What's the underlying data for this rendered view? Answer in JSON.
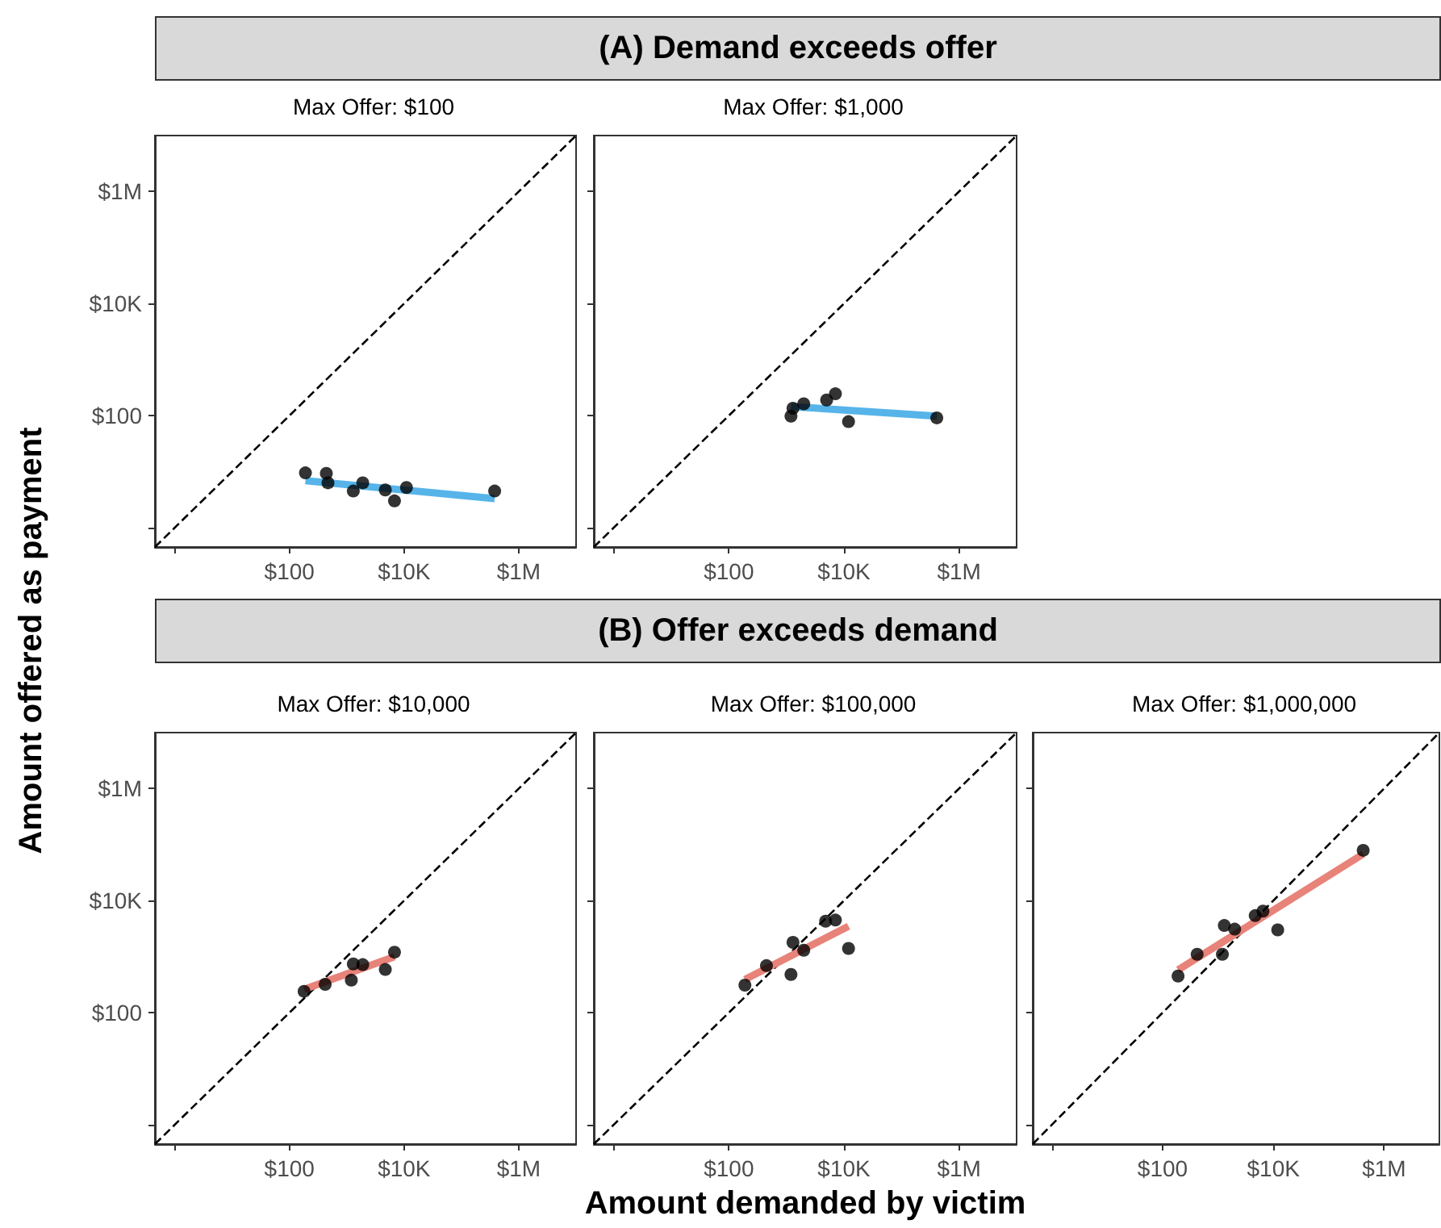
{
  "chart_data": [
    {
      "type": "scatter",
      "title": "Max Offer: $100",
      "ylabel": "Amount offered as payment",
      "annotations": [
        "(A) Demand exceeds offer"
      ],
      "xlim": [
        0.45,
        10000000
      ],
      "ylim": [
        0.45,
        10000000
      ],
      "xticks": [
        {
          "value": 1,
          "label": null
        },
        {
          "value": 100,
          "label": "$100"
        },
        {
          "value": 10000,
          "label": "$10K"
        },
        {
          "value": 1000000,
          "label": "$1M"
        }
      ],
      "yticks": [
        {
          "value": 1,
          "label": null
        },
        {
          "value": 100,
          "label": "$100"
        },
        {
          "value": 10000,
          "label": "$10K"
        },
        {
          "value": 1000000,
          "label": "$1M"
        }
      ],
      "log": "xy",
      "grid": false,
      "series": [
        {
          "type": "line",
          "color": "#000000",
          "line_style": "dashed",
          "marker": "none",
          "x": [
            0.45,
            10000000
          ],
          "values": [
            0.45,
            10000000
          ]
        },
        {
          "color": "#000000",
          "marker": "circle",
          "x": [
            190,
            440,
            470,
            1300,
            1900,
            4700,
            6800,
            11000,
            380000
          ],
          "values": [
            9.5,
            9.3,
            6.3,
            4.5,
            6.3,
            4.7,
            3.0,
            5.2,
            4.5
          ]
        },
        {
          "type": "line",
          "color": "#56b4e9",
          "line_style": "solid",
          "marker": "none",
          "x": [
            190,
            380000
          ],
          "values": [
            6.9,
            3.3
          ]
        }
      ]
    },
    {
      "type": "scatter",
      "title": "Max Offer: $1,000",
      "xlim": [
        0.45,
        10000000
      ],
      "ylim": [
        0.45,
        10000000
      ],
      "xticks": [
        {
          "value": 1,
          "label": null
        },
        {
          "value": 100,
          "label": "$100"
        },
        {
          "value": 10000,
          "label": "$10K"
        },
        {
          "value": 1000000,
          "label": "$1M"
        }
      ],
      "yticks": [
        {
          "value": 1,
          "label": null
        },
        {
          "value": 100,
          "label": null
        },
        {
          "value": 10000,
          "label": null
        },
        {
          "value": 1000000,
          "label": null
        }
      ],
      "log": "xy",
      "grid": false,
      "tick_labels": "x",
      "series": [
        {
          "type": "line",
          "color": "#000000",
          "line_style": "dashed",
          "marker": "none",
          "x": [
            0.45,
            10000000
          ],
          "values": [
            0.45,
            10000000
          ]
        },
        {
          "color": "#000000",
          "marker": "circle",
          "x": [
            1200,
            1300,
            2000,
            5000,
            7100,
            12000,
            410000
          ],
          "values": [
            98,
            135,
            162,
            190,
            245,
            78,
            91
          ]
        },
        {
          "type": "line",
          "color": "#56b4e9",
          "line_style": "solid",
          "marker": "none",
          "x": [
            1200,
            410000
          ],
          "values": [
            145,
            98
          ]
        }
      ]
    },
    {
      "type": "scatter",
      "title": "Max Offer: $10,000",
      "annotations": [
        "(B) Offer exceeds demand"
      ],
      "xlim": [
        0.45,
        10000000
      ],
      "ylim": [
        0.45,
        10000000
      ],
      "xticks": [
        {
          "value": 1,
          "label": null
        },
        {
          "value": 100,
          "label": "$100"
        },
        {
          "value": 10000,
          "label": "$10K"
        },
        {
          "value": 1000000,
          "label": "$1M"
        }
      ],
      "yticks": [
        {
          "value": 1,
          "label": null
        },
        {
          "value": 100,
          "label": "$100"
        },
        {
          "value": 10000,
          "label": "$10K"
        },
        {
          "value": 1000000,
          "label": "$1M"
        }
      ],
      "log": "xy",
      "grid": false,
      "series": [
        {
          "type": "line",
          "color": "#000000",
          "line_style": "dashed",
          "marker": "none",
          "x": [
            0.45,
            10000000
          ],
          "values": [
            0.45,
            10000000
          ]
        },
        {
          "color": "#000000",
          "marker": "circle",
          "x": [
            180,
            420,
            1300,
            1900,
            1200,
            4700,
            6800
          ],
          "values": [
            240,
            320,
            740,
            720,
            380,
            590,
            1200
          ]
        },
        {
          "type": "line",
          "color": "#e8837a",
          "line_style": "solid",
          "marker": "none",
          "x": [
            180,
            6800
          ],
          "values": [
            260,
            1000
          ]
        }
      ]
    },
    {
      "type": "scatter",
      "title": "Max Offer: $100,000",
      "xlabel": "Amount demanded by victim",
      "xlim": [
        0.45,
        10000000
      ],
      "ylim": [
        0.45,
        10000000
      ],
      "xticks": [
        {
          "value": 1,
          "label": null
        },
        {
          "value": 100,
          "label": "$100"
        },
        {
          "value": 10000,
          "label": "$10K"
        },
        {
          "value": 1000000,
          "label": "$1M"
        }
      ],
      "yticks": [
        {
          "value": 1,
          "label": null
        },
        {
          "value": 100,
          "label": null
        },
        {
          "value": 10000,
          "label": null
        },
        {
          "value": 1000000,
          "label": null
        }
      ],
      "log": "xy",
      "grid": false,
      "tick_labels": "x",
      "series": [
        {
          "type": "line",
          "color": "#000000",
          "line_style": "dashed",
          "marker": "none",
          "x": [
            0.45,
            10000000
          ],
          "values": [
            0.45,
            10000000
          ]
        },
        {
          "color": "#000000",
          "marker": "circle",
          "x": [
            190,
            450,
            1200,
            1300,
            2000,
            4800,
            7100,
            12000
          ],
          "values": [
            310,
            690,
            480,
            1800,
            1300,
            4300,
            4500,
            1400
          ]
        },
        {
          "type": "line",
          "color": "#e8837a",
          "line_style": "solid",
          "marker": "none",
          "x": [
            190,
            12000
          ],
          "values": [
            390,
            3500
          ]
        }
      ]
    },
    {
      "type": "scatter",
      "title": "Max Offer: $1,000,000",
      "xlim": [
        0.45,
        10000000
      ],
      "ylim": [
        0.45,
        10000000
      ],
      "xticks": [
        {
          "value": 1,
          "label": null
        },
        {
          "value": 100,
          "label": "$100"
        },
        {
          "value": 10000,
          "label": "$10K"
        },
        {
          "value": 1000000,
          "label": "$1M"
        }
      ],
      "yticks": [
        {
          "value": 1,
          "label": null
        },
        {
          "value": 100,
          "label": null
        },
        {
          "value": 10000,
          "label": null
        },
        {
          "value": 1000000,
          "label": null
        }
      ],
      "log": "xy",
      "grid": false,
      "tick_labels": "x",
      "series": [
        {
          "type": "line",
          "color": "#000000",
          "line_style": "dashed",
          "marker": "none",
          "x": [
            0.45,
            10000000
          ],
          "values": [
            0.45,
            10000000
          ]
        },
        {
          "color": "#000000",
          "marker": "circle",
          "x": [
            190,
            420,
            1200,
            1300,
            2000,
            4700,
            6500,
            12000,
            420000
          ],
          "values": [
            450,
            1100,
            1100,
            3600,
            3100,
            5400,
            6500,
            3000,
            79000
          ]
        },
        {
          "type": "line",
          "color": "#e8837a",
          "line_style": "solid",
          "marker": "none",
          "x": [
            190,
            420000
          ],
          "values": [
            580,
            68000
          ]
        }
      ]
    }
  ]
}
